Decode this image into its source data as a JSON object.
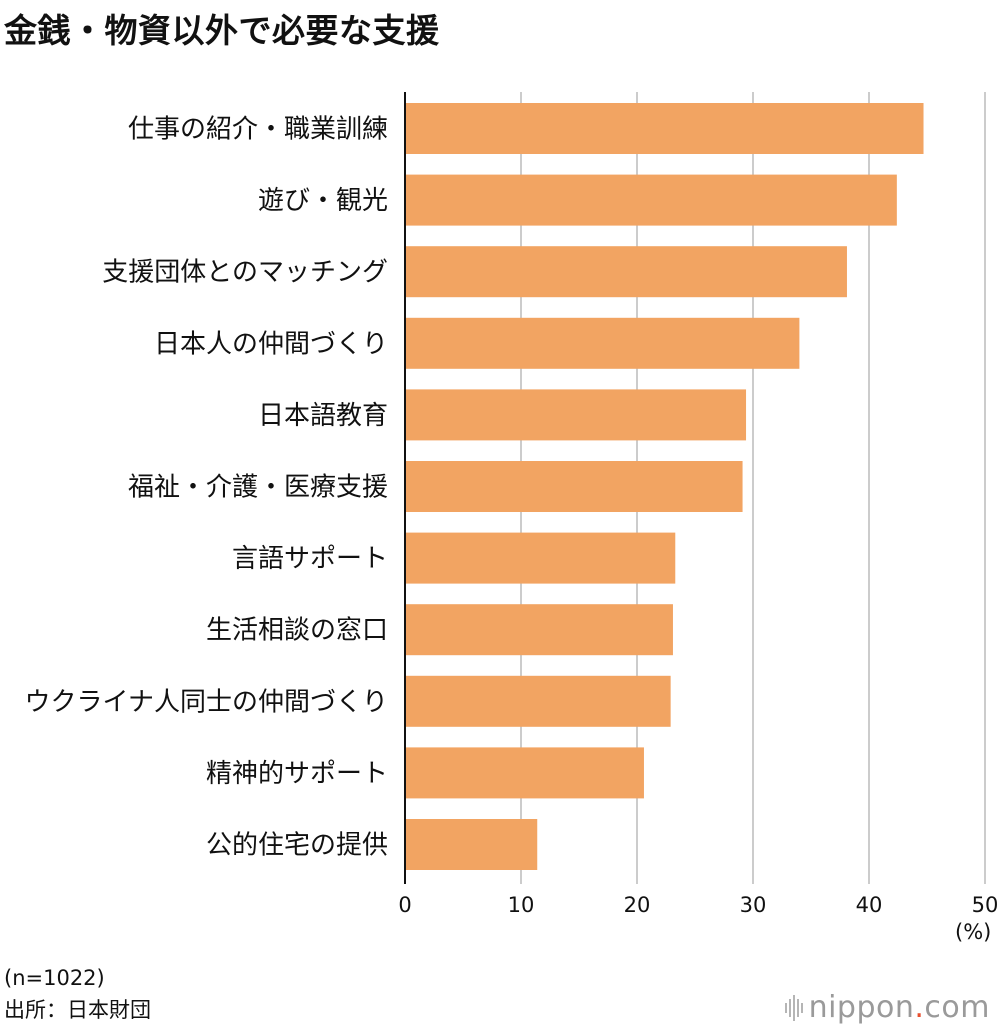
{
  "title": "金銭・物資以外で必要な支援",
  "chart_data": {
    "type": "bar",
    "orientation": "horizontal",
    "categories": [
      "仕事の紹介・職業訓練",
      "遊び・観光",
      "支援団体とのマッチング",
      "日本人の仲間づくり",
      "日本語教育",
      "福祉・介護・医療支援",
      "言語サポート",
      "生活相談の窓口",
      "ウクライナ人同士の仲間づくり",
      "精神的サポート",
      "公的住宅の提供"
    ],
    "values": [
      44.7,
      42.4,
      38.1,
      34.0,
      29.4,
      29.1,
      23.3,
      23.1,
      22.9,
      20.6,
      11.4
    ],
    "xlim": [
      0,
      50
    ],
    "xticks": [
      0,
      10,
      20,
      30,
      40,
      50
    ],
    "xlabel": "(%)",
    "grid": true,
    "bar_color": "#f2a462",
    "grid_color": "#cccccc"
  },
  "notes": {
    "sample": "(n=1022)",
    "source": "出所：日本財団"
  },
  "brand": {
    "name": "nippon",
    "dot": ".",
    "suffix": "com"
  }
}
